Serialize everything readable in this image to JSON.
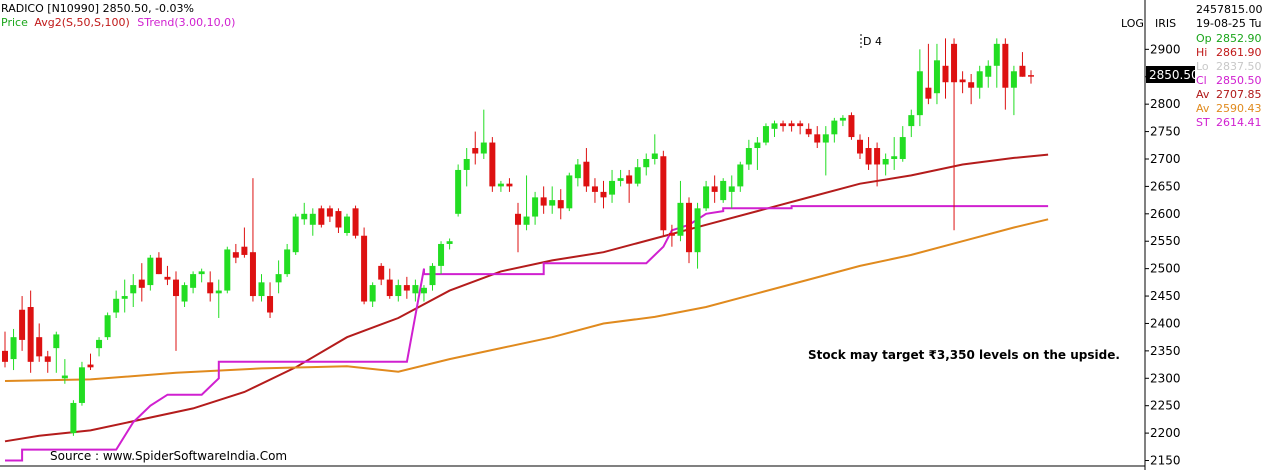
{
  "header": {
    "symbol": "RADICO [N10990]",
    "price_change": "2850.50,  -0.03%",
    "indicators": [
      {
        "text": "Price",
        "color": "#1aa51a"
      },
      {
        "text": "Avg2(S,50,S,100)",
        "color": "#c01818"
      },
      {
        "text": "STrend(3.00,10,0)",
        "color": "#d020d0"
      }
    ]
  },
  "toolbar": {
    "log": "LOG",
    "iris": "IRIS"
  },
  "info_panel": {
    "date_serial": "2457815.00",
    "date": "19-08-25 Tu",
    "rows": [
      {
        "label": "Op",
        "value": "2852.90",
        "color": "#1aa51a"
      },
      {
        "label": "Hi",
        "value": "2861.90",
        "color": "#c01818"
      },
      {
        "label": "Lo",
        "value": "2837.50",
        "color": "#c8c8c8"
      },
      {
        "label": "Cl",
        "value": "2850.50",
        "color": "#d020d0"
      },
      {
        "label": "Av",
        "value": "2707.85",
        "color": "#b01818"
      },
      {
        "label": "Av",
        "value": "2590.43",
        "color": "#e08a1e"
      },
      {
        "label": "ST",
        "value": "2614.41",
        "color": "#d020d0"
      }
    ]
  },
  "price_tag": "2850.50",
  "annotation": "Stock may target ₹3,350 levels on the upside.",
  "source": "Source : www.SpiderSoftwareIndia.Com",
  "marker": "D 4",
  "chart_data": {
    "type": "candlestick",
    "ylim": [
      2140,
      2990
    ],
    "yticks": [
      2150,
      2200,
      2250,
      2300,
      2350,
      2400,
      2450,
      2500,
      2550,
      2600,
      2650,
      2700,
      2750,
      2800,
      2850,
      2900
    ],
    "up_color": "#22dd22",
    "down_color": "#dd1111",
    "candles": [
      [
        2350,
        2385,
        2320,
        2330
      ],
      [
        2335,
        2390,
        2315,
        2375
      ],
      [
        2425,
        2450,
        2350,
        2370
      ],
      [
        2430,
        2460,
        2310,
        2330
      ],
      [
        2375,
        2400,
        2330,
        2340
      ],
      [
        2340,
        2350,
        2310,
        2330
      ],
      [
        2355,
        2385,
        2310,
        2380
      ],
      [
        2300,
        2335,
        2290,
        2305
      ],
      [
        2200,
        2260,
        2195,
        2255
      ],
      [
        2255,
        2330,
        2250,
        2320
      ],
      [
        2325,
        2345,
        2315,
        2320
      ],
      [
        2355,
        2375,
        2340,
        2370
      ],
      [
        2375,
        2420,
        2370,
        2415
      ],
      [
        2420,
        2460,
        2410,
        2445
      ],
      [
        2445,
        2480,
        2420,
        2450
      ],
      [
        2455,
        2490,
        2430,
        2470
      ],
      [
        2480,
        2510,
        2440,
        2465
      ],
      [
        2470,
        2525,
        2460,
        2520
      ],
      [
        2520,
        2530,
        2490,
        2490
      ],
      [
        2485,
        2505,
        2470,
        2480
      ],
      [
        2480,
        2495,
        2350,
        2450
      ],
      [
        2440,
        2475,
        2430,
        2470
      ],
      [
        2465,
        2495,
        2455,
        2490
      ],
      [
        2490,
        2500,
        2475,
        2495
      ],
      [
        2475,
        2495,
        2440,
        2455
      ],
      [
        2455,
        2480,
        2410,
        2460
      ],
      [
        2460,
        2540,
        2455,
        2535
      ],
      [
        2530,
        2545,
        2510,
        2520
      ],
      [
        2540,
        2575,
        2520,
        2525
      ],
      [
        2530,
        2665,
        2440,
        2450
      ],
      [
        2450,
        2490,
        2440,
        2475
      ],
      [
        2450,
        2475,
        2410,
        2420
      ],
      [
        2475,
        2515,
        2455,
        2490
      ],
      [
        2490,
        2545,
        2485,
        2535
      ],
      [
        2530,
        2600,
        2525,
        2595
      ],
      [
        2590,
        2620,
        2580,
        2600
      ],
      [
        2580,
        2610,
        2560,
        2600
      ],
      [
        2610,
        2615,
        2575,
        2580
      ],
      [
        2610,
        2615,
        2585,
        2595
      ],
      [
        2605,
        2610,
        2565,
        2575
      ],
      [
        2565,
        2600,
        2560,
        2595
      ],
      [
        2610,
        2615,
        2555,
        2560
      ],
      [
        2560,
        2575,
        2435,
        2440
      ],
      [
        2440,
        2475,
        2430,
        2470
      ],
      [
        2505,
        2510,
        2470,
        2480
      ],
      [
        2480,
        2500,
        2445,
        2450
      ],
      [
        2450,
        2480,
        2440,
        2470
      ],
      [
        2470,
        2485,
        2445,
        2460
      ],
      [
        2455,
        2480,
        2440,
        2470
      ],
      [
        2455,
        2470,
        2440,
        2465
      ],
      [
        2470,
        2510,
        2460,
        2505
      ],
      [
        2505,
        2550,
        2490,
        2545
      ],
      [
        2545,
        2555,
        2535,
        2550
      ],
      [
        2600,
        2690,
        2595,
        2680
      ],
      [
        2680,
        2720,
        2650,
        2700
      ],
      [
        2720,
        2750,
        2690,
        2710
      ],
      [
        2710,
        2790,
        2700,
        2730
      ],
      [
        2730,
        2740,
        2640,
        2650
      ],
      [
        2650,
        2660,
        2640,
        2655
      ],
      [
        2655,
        2665,
        2640,
        2650
      ],
      [
        2600,
        2620,
        2530,
        2580
      ],
      [
        2580,
        2670,
        2570,
        2595
      ],
      [
        2595,
        2640,
        2580,
        2630
      ],
      [
        2630,
        2650,
        2600,
        2615
      ],
      [
        2615,
        2650,
        2600,
        2625
      ],
      [
        2625,
        2645,
        2590,
        2610
      ],
      [
        2610,
        2675,
        2605,
        2670
      ],
      [
        2665,
        2700,
        2650,
        2690
      ],
      [
        2695,
        2720,
        2640,
        2650
      ],
      [
        2650,
        2665,
        2620,
        2640
      ],
      [
        2640,
        2660,
        2610,
        2630
      ],
      [
        2635,
        2680,
        2620,
        2660
      ],
      [
        2660,
        2680,
        2650,
        2665
      ],
      [
        2670,
        2680,
        2620,
        2655
      ],
      [
        2655,
        2700,
        2650,
        2685
      ],
      [
        2685,
        2710,
        2670,
        2700
      ],
      [
        2700,
        2745,
        2690,
        2710
      ],
      [
        2705,
        2715,
        2560,
        2570
      ],
      [
        2565,
        2580,
        2540,
        2560
      ],
      [
        2560,
        2660,
        2550,
        2620
      ],
      [
        2620,
        2630,
        2510,
        2530
      ],
      [
        2530,
        2620,
        2500,
        2610
      ],
      [
        2610,
        2660,
        2605,
        2650
      ],
      [
        2650,
        2670,
        2620,
        2640
      ],
      [
        2625,
        2665,
        2620,
        2660
      ],
      [
        2640,
        2670,
        2610,
        2650
      ],
      [
        2650,
        2695,
        2640,
        2690
      ],
      [
        2690,
        2735,
        2680,
        2720
      ],
      [
        2720,
        2740,
        2680,
        2730
      ],
      [
        2730,
        2765,
        2725,
        2760
      ],
      [
        2755,
        2770,
        2740,
        2765
      ],
      [
        2765,
        2770,
        2750,
        2760
      ],
      [
        2765,
        2770,
        2750,
        2760
      ],
      [
        2765,
        2770,
        2745,
        2760
      ],
      [
        2755,
        2765,
        2740,
        2745
      ],
      [
        2745,
        2760,
        2720,
        2730
      ],
      [
        2730,
        2760,
        2670,
        2745
      ],
      [
        2745,
        2775,
        2730,
        2770
      ],
      [
        2770,
        2780,
        2760,
        2775
      ],
      [
        2780,
        2785,
        2735,
        2740
      ],
      [
        2735,
        2745,
        2700,
        2710
      ],
      [
        2720,
        2740,
        2680,
        2690
      ],
      [
        2720,
        2730,
        2650,
        2690
      ],
      [
        2690,
        2710,
        2670,
        2700
      ],
      [
        2700,
        2740,
        2680,
        2705
      ],
      [
        2700,
        2760,
        2695,
        2740
      ],
      [
        2760,
        2790,
        2740,
        2780
      ],
      [
        2780,
        2900,
        2760,
        2860
      ],
      [
        2830,
        2910,
        2800,
        2810
      ],
      [
        2820,
        2910,
        2800,
        2880
      ],
      [
        2870,
        2920,
        2810,
        2840
      ],
      [
        2910,
        2920,
        2570,
        2840
      ],
      [
        2845,
        2860,
        2820,
        2840
      ],
      [
        2840,
        2855,
        2800,
        2830
      ],
      [
        2830,
        2870,
        2810,
        2860
      ],
      [
        2850,
        2880,
        2830,
        2870
      ],
      [
        2870,
        2920,
        2830,
        2910
      ],
      [
        2910,
        2920,
        2790,
        2830
      ],
      [
        2830,
        2870,
        2780,
        2860
      ],
      [
        2870,
        2895,
        2850,
        2850
      ],
      [
        2852.9,
        2861.9,
        2837.5,
        2850.5
      ]
    ],
    "series": [
      {
        "name": "Avg2(S,50,S,100)",
        "color": "#b41c1c",
        "x": [
          0,
          4,
          10,
          16,
          22,
          28,
          34,
          40,
          46,
          52,
          58,
          64,
          70,
          76,
          82,
          88,
          94,
          100,
          106,
          112,
          118,
          122
        ],
        "values": [
          2185,
          2195,
          2205,
          2225,
          2245,
          2275,
          2320,
          2375,
          2410,
          2460,
          2495,
          2515,
          2530,
          2555,
          2580,
          2605,
          2630,
          2655,
          2670,
          2690,
          2702,
          2708
        ]
      },
      {
        "name": "",
        "color": "#e08a1e",
        "x": [
          0,
          10,
          20,
          30,
          40,
          46,
          52,
          58,
          64,
          70,
          76,
          82,
          88,
          94,
          100,
          106,
          112,
          118,
          122
        ],
        "values": [
          2295,
          2298,
          2310,
          2318,
          2322,
          2312,
          2335,
          2355,
          2375,
          2400,
          2412,
          2430,
          2455,
          2480,
          2505,
          2525,
          2550,
          2575,
          2590
        ]
      },
      {
        "name": "STrend(3.00,10,0)",
        "color": "#d020d0",
        "x": [
          0,
          2,
          2,
          13,
          15,
          15,
          17,
          17,
          19,
          19,
          23,
          25,
          25,
          29,
          29,
          34,
          36,
          37,
          38,
          44,
          45,
          47,
          49,
          49,
          50,
          62,
          63,
          63,
          67,
          68,
          70,
          70,
          75,
          77,
          78,
          80,
          82,
          84,
          84,
          90,
          92,
          92,
          122
        ],
        "values": [
          2150,
          2150,
          2170,
          2170,
          2220,
          2220,
          2250,
          2250,
          2270,
          2270,
          2270,
          2300,
          2330,
          2330,
          2330,
          2330,
          2330,
          2330,
          2330,
          2330,
          2330,
          2330,
          2500,
          2490,
          2490,
          2490,
          2490,
          2510,
          2510,
          2510,
          2510,
          2510,
          2510,
          2540,
          2570,
          2580,
          2600,
          2605,
          2610,
          2610,
          2610,
          2614,
          2614
        ]
      }
    ]
  }
}
